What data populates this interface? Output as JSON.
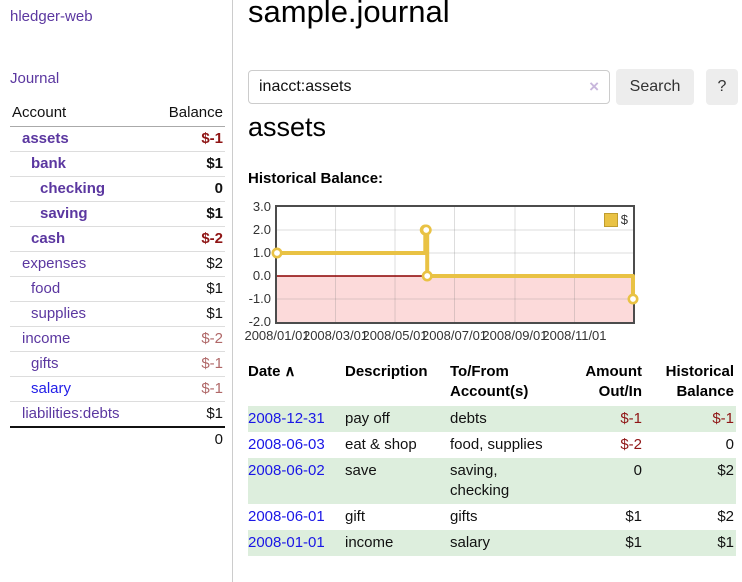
{
  "app": {
    "brand": "hledger-web",
    "nav_journal": "Journal"
  },
  "colors": {
    "accent_purple": "#5b37a0",
    "link_blue": "#1a16e6",
    "negative_strong": "#8f1515",
    "negative_soft": "#b06868",
    "row_green": "#ddeedd",
    "chart_line": "#e9c244",
    "negative_region": "#fcdada",
    "zero_line": "#8b0000"
  },
  "sidebar": {
    "header": {
      "account": "Account",
      "balance": "Balance"
    },
    "accounts": [
      {
        "name": "assets",
        "balance": "$-1",
        "indent": 1,
        "bold": true,
        "neg": "strong",
        "blue": false
      },
      {
        "name": "bank",
        "balance": "$1",
        "indent": 2,
        "bold": true,
        "neg": "none",
        "blue": false
      },
      {
        "name": "checking",
        "balance": "0",
        "indent": 3,
        "bold": true,
        "neg": "none",
        "blue": false
      },
      {
        "name": "saving",
        "balance": "$1",
        "indent": 3,
        "bold": true,
        "neg": "none",
        "blue": false
      },
      {
        "name": "cash",
        "balance": "$-2",
        "indent": 2,
        "bold": true,
        "neg": "strong",
        "blue": false
      },
      {
        "name": "expenses",
        "balance": "$2",
        "indent": 1,
        "bold": false,
        "neg": "none",
        "blue": false
      },
      {
        "name": "food",
        "balance": "$1",
        "indent": 2,
        "bold": false,
        "neg": "none",
        "blue": false
      },
      {
        "name": "supplies",
        "balance": "$1",
        "indent": 2,
        "bold": false,
        "neg": "none",
        "blue": false
      },
      {
        "name": "income",
        "balance": "$-2",
        "indent": 1,
        "bold": false,
        "neg": "soft",
        "blue": false
      },
      {
        "name": "gifts",
        "balance": "$-1",
        "indent": 2,
        "bold": false,
        "neg": "soft",
        "blue": false
      },
      {
        "name": "salary",
        "balance": "$-1",
        "indent": 2,
        "bold": false,
        "neg": "soft",
        "blue": true
      },
      {
        "name": "liabilities:debts",
        "balance": "$1",
        "indent": 1,
        "bold": false,
        "neg": "none",
        "blue": false
      }
    ],
    "total": "0"
  },
  "main": {
    "title": "sample.journal",
    "search": {
      "value": "inacct:assets",
      "clear_icon": "×",
      "button": "Search",
      "help": "?"
    },
    "account_heading": "assets",
    "chart_heading": "Historical Balance:"
  },
  "chart_data": {
    "type": "line",
    "step": true,
    "title": "Historical Balance",
    "series": [
      {
        "name": "$",
        "color": "#e9c244",
        "points": [
          [
            "2008-01-01",
            1
          ],
          [
            "2008-06-01",
            2
          ],
          [
            "2008-06-02",
            2
          ],
          [
            "2008-06-03",
            0
          ],
          [
            "2008-12-31",
            -1
          ]
        ]
      }
    ],
    "x_ticks": [
      "2008/01/01",
      "2008/03/01",
      "2008/05/01",
      "2008/07/01",
      "2008/09/01",
      "2008/11/01"
    ],
    "y_ticks": [
      3.0,
      2.0,
      1.0,
      0.0,
      -1.0,
      -2.0
    ],
    "ylim": [
      -2,
      3
    ],
    "xlim": [
      "2008-01-01",
      "2008-12-31"
    ],
    "grid": true,
    "legend_position": "top-right",
    "negative_fill": "#fcdada",
    "zero_line_color": "#8b0000"
  },
  "register": {
    "sort_icon": "∧",
    "headers": [
      {
        "label": "Date",
        "align": "left",
        "sorted": true
      },
      {
        "label": "Description",
        "align": "left",
        "sorted": false
      },
      {
        "label": "To/From Account(s)",
        "align": "left",
        "sorted": false
      },
      {
        "label": "Amount Out/In",
        "align": "right",
        "sorted": false
      },
      {
        "label": "Historical Balance",
        "align": "right",
        "sorted": false
      }
    ],
    "rows": [
      {
        "date": "2008-12-31",
        "description": "pay off",
        "accounts": "debts",
        "amount": "$-1",
        "amount_neg": true,
        "balance": "$-1",
        "balance_neg": true
      },
      {
        "date": "2008-06-03",
        "description": "eat & shop",
        "accounts": "food, supplies",
        "amount": "$-2",
        "amount_neg": true,
        "balance": "0",
        "balance_neg": false
      },
      {
        "date": "2008-06-02",
        "description": "save",
        "accounts": "saving, checking",
        "amount": "0",
        "amount_neg": false,
        "balance": "$2",
        "balance_neg": false
      },
      {
        "date": "2008-06-01",
        "description": "gift",
        "accounts": "gifts",
        "amount": "$1",
        "amount_neg": false,
        "balance": "$2",
        "balance_neg": false
      },
      {
        "date": "2008-01-01",
        "description": "income",
        "accounts": "salary",
        "amount": "$1",
        "amount_neg": false,
        "balance": "$1",
        "balance_neg": false
      }
    ]
  }
}
